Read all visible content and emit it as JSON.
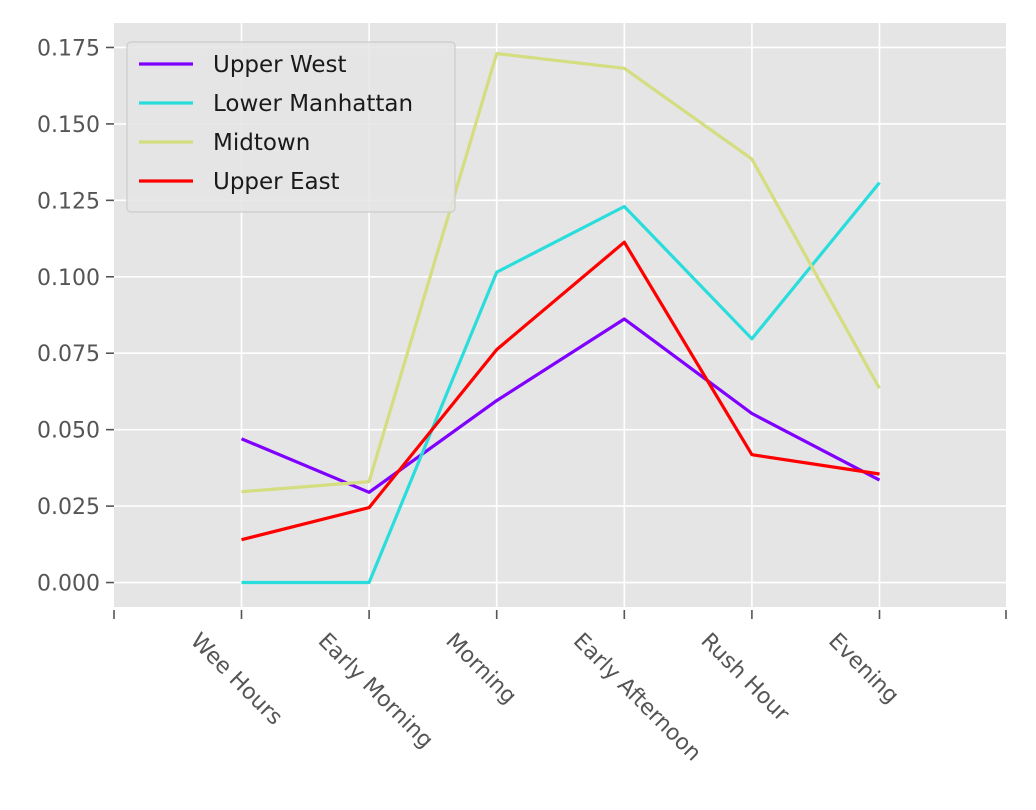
{
  "chart_data": {
    "type": "line",
    "title": "",
    "xlabel": "",
    "ylabel": "",
    "categories": [
      "Wee Hours",
      "Early Morning",
      "Morning",
      "Early Afternoon",
      "Rush Hour",
      "Evening"
    ],
    "ylim": [
      -0.008,
      0.183
    ],
    "yticks": [
      0.0,
      0.025,
      0.05,
      0.075,
      0.1,
      0.125,
      0.15,
      0.175
    ],
    "ytick_labels": [
      "0.000",
      "0.025",
      "0.050",
      "0.075",
      "0.100",
      "0.125",
      "0.150",
      "0.175"
    ],
    "grid": true,
    "legend_position": "top-left",
    "background": "#e5e5e5",
    "series": [
      {
        "name": "Upper West",
        "color": "#8000ff",
        "values": [
          0.047,
          0.0295,
          0.0595,
          0.0862,
          0.0553,
          0.0335
        ]
      },
      {
        "name": "Lower Manhattan",
        "color": "#2adddd",
        "values": [
          0.0,
          0.0,
          0.1015,
          0.123,
          0.0797,
          0.1308
        ]
      },
      {
        "name": "Midtown",
        "color": "#d4dd80",
        "values": [
          0.0297,
          0.033,
          0.173,
          0.1682,
          0.1385,
          0.0635
        ]
      },
      {
        "name": "Upper East",
        "color": "#ff0000",
        "values": [
          0.014,
          0.0245,
          0.0762,
          0.1113,
          0.0418,
          0.0355
        ]
      }
    ]
  }
}
